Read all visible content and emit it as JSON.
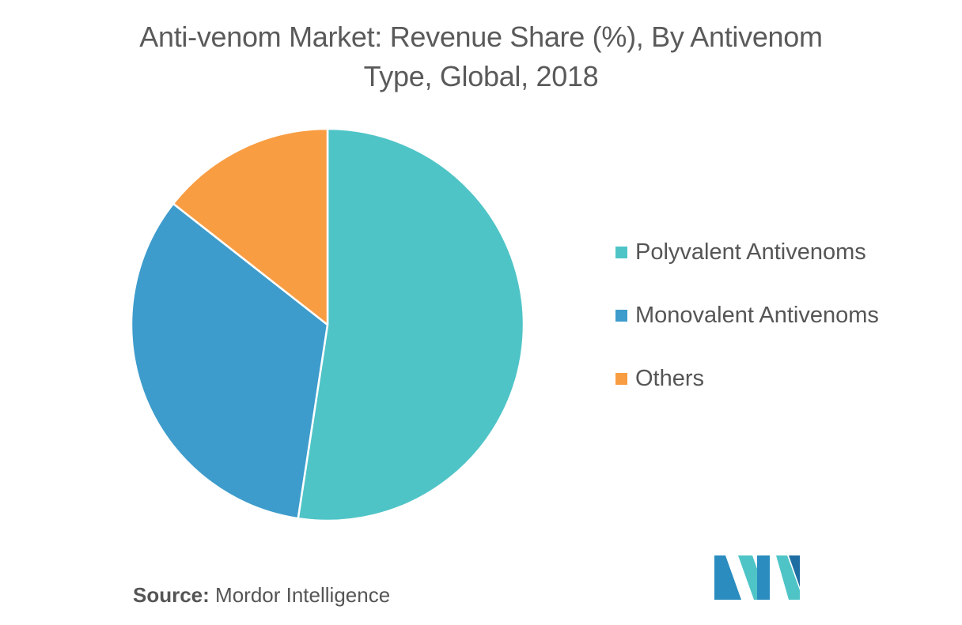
{
  "chart_data": {
    "type": "pie",
    "title": "Anti-venom Market: Revenue Share (%), By Antivenom Type, Global, 2018",
    "title_lines": [
      "Anti-venom Market: Revenue Share (%), By Antivenom",
      "Type, Global, 2018"
    ],
    "slices": [
      {
        "label": "Polyvalent Antivenoms",
        "value": 52.4,
        "color": "#4fc4c7"
      },
      {
        "label": "Monovalent Antivenoms",
        "value": 33.2,
        "color": "#3d9ccc"
      },
      {
        "label": "Others",
        "value": 14.4,
        "color": "#f99d43"
      }
    ],
    "start_angle_deg": 0,
    "direction": "clockwise",
    "legend_position": "right"
  },
  "source": {
    "label": "Source:",
    "text": "Mordor Intelligence"
  },
  "logo": {
    "icon": "mordor-intelligence-logo",
    "colors": [
      "#2a8cbf",
      "#4fc4c7",
      "#1f6ea3"
    ]
  }
}
